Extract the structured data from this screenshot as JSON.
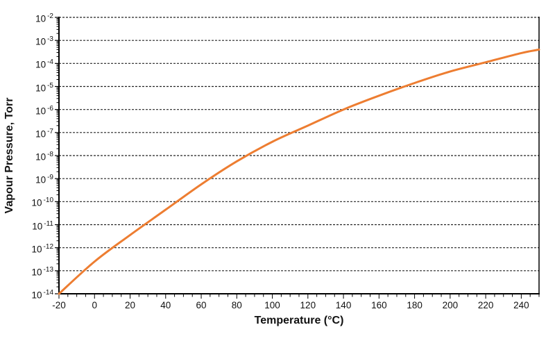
{
  "chart_data": {
    "type": "line",
    "title": "",
    "xlabel": "Temperature (°C)",
    "ylabel": "Vapour Pressure, Torr",
    "grid": "dashed horizontal lines at each decade",
    "legend": "none",
    "x_axis": {
      "min": -20,
      "max": 250,
      "major_tick_step": 20,
      "minor_tick_step": 5,
      "tick_labels": [
        -20,
        0,
        20,
        40,
        60,
        80,
        100,
        120,
        140,
        160,
        180,
        200,
        220,
        240
      ]
    },
    "y_axis": {
      "scale": "log10",
      "unit": "Torr",
      "base": "10",
      "max_exponent": -2,
      "min_exponent": -14,
      "tick_exponents": [
        -2,
        -3,
        -4,
        -5,
        -6,
        -7,
        -8,
        -9,
        -10,
        -11,
        -12,
        -13,
        -14
      ]
    },
    "series": [
      {
        "name": "vapour-pressure-curve",
        "color": "#ED7D31",
        "points": [
          {
            "t": -20,
            "log10_p": -14.0
          },
          {
            "t": 0,
            "log10_p": -12.6
          },
          {
            "t": 20,
            "log10_p": -11.45
          },
          {
            "t": 40,
            "log10_p": -10.35
          },
          {
            "t": 60,
            "log10_p": -9.25
          },
          {
            "t": 80,
            "log10_p": -8.25
          },
          {
            "t": 100,
            "log10_p": -7.4
          },
          {
            "t": 120,
            "log10_p": -6.7
          },
          {
            "t": 140,
            "log10_p": -6.0
          },
          {
            "t": 160,
            "log10_p": -5.4
          },
          {
            "t": 180,
            "log10_p": -4.85
          },
          {
            "t": 200,
            "log10_p": -4.35
          },
          {
            "t": 220,
            "log10_p": -3.95
          },
          {
            "t": 240,
            "log10_p": -3.55
          },
          {
            "t": 250,
            "log10_p": -3.4
          }
        ]
      }
    ]
  },
  "colors": {
    "curve": "#ED7D31",
    "grid": "#222222",
    "axis": "#000000",
    "text": "#111111",
    "background": "#FFFFFF"
  }
}
